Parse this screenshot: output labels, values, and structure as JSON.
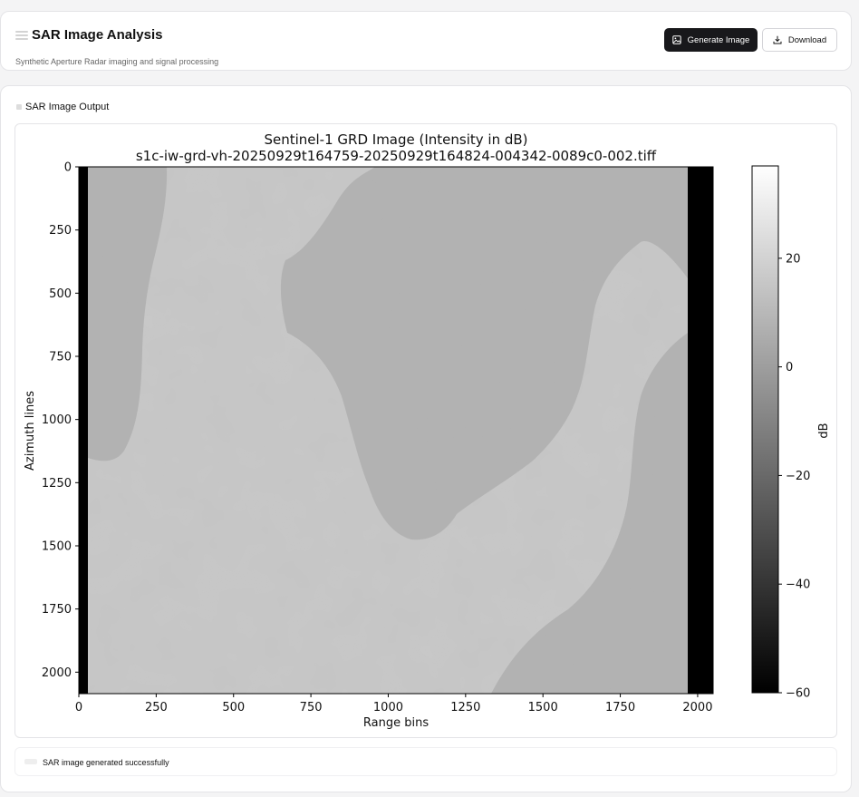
{
  "header": {
    "title": "SAR Image Analysis",
    "subtitle": "Synthetic Aperture Radar imaging and signal processing",
    "menu_icon": "menu-icon",
    "generate_label": "Generate Image",
    "generate_icon": "image-icon",
    "download_label": "Download",
    "download_icon": "download-icon"
  },
  "output": {
    "section_title": "SAR Image Output",
    "status": "SAR image generated successfully"
  },
  "chart_data": {
    "type": "heatmap",
    "title": "Sentinel-1 GRD Image (Intensity in dB)",
    "subtitle": "s1c-iw-grd-vh-20250929t164759-20250929t164824-004342-0089c0-002.tiff",
    "xlabel": "Range bins",
    "ylabel": "Azimuth lines",
    "xlim": [
      0,
      2050
    ],
    "ylim": [
      2085,
      0
    ],
    "xticks": [
      0,
      250,
      500,
      750,
      1000,
      1250,
      1500,
      1750,
      2000
    ],
    "yticks": [
      0,
      250,
      500,
      750,
      1000,
      1250,
      1500,
      1750,
      2000
    ],
    "colorbar": {
      "label": "dB",
      "range": [
        -60,
        37
      ],
      "ticks": [
        20,
        0,
        -20,
        -40,
        -60
      ],
      "tick_labels": [
        "20",
        "0",
        "−20",
        "−40",
        "−60"
      ],
      "colormap": "gray"
    },
    "colors": {
      "land": "#c9c9c9",
      "water": "#b1b1b1",
      "nodata": "#000000"
    }
  }
}
